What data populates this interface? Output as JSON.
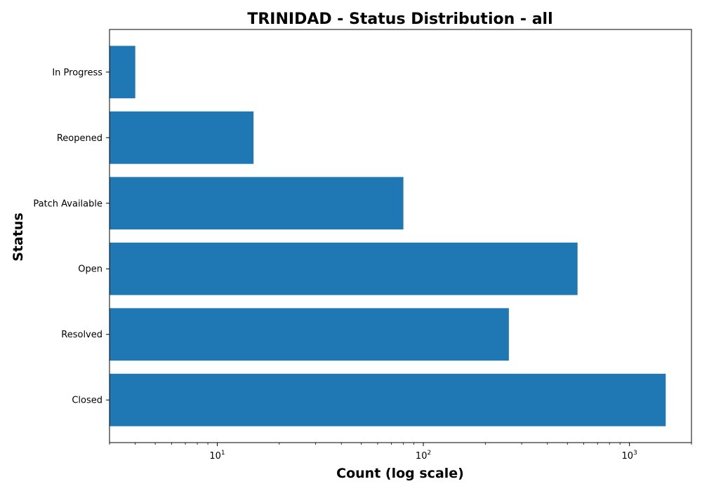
{
  "chart_data": {
    "type": "bar",
    "orientation": "horizontal",
    "title": "TRINIDAD - Status Distribution - all",
    "xlabel": "Count (log scale)",
    "ylabel": "Status",
    "xscale": "log",
    "xlim": [
      3,
      2000
    ],
    "x_ticks": [
      {
        "value": 10,
        "base": "10",
        "exp": "1"
      },
      {
        "value": 100,
        "base": "10",
        "exp": "2"
      },
      {
        "value": 1000,
        "base": "10",
        "exp": "3"
      }
    ],
    "categories": [
      "In Progress",
      "Reopened",
      "Patch Available",
      "Open",
      "Resolved",
      "Closed"
    ],
    "values": [
      4,
      15,
      80,
      560,
      260,
      1500
    ],
    "bar_color": "#1f77b4",
    "grid": false
  }
}
